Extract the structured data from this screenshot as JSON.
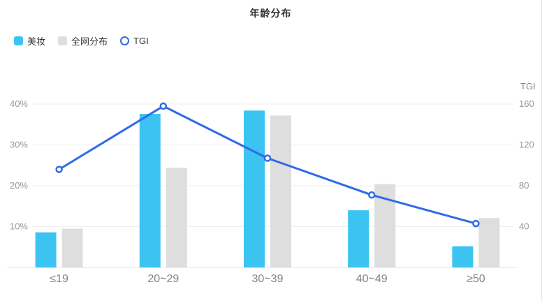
{
  "chart_data": {
    "type": "combo-bar-line",
    "title": "年龄分布",
    "categories": [
      "≤19",
      "20~29",
      "30~39",
      "40~49",
      "≥50"
    ],
    "series": [
      {
        "name": "美妆",
        "type": "bar",
        "axis": "left",
        "unit": "%",
        "color": "#3bc4f2",
        "values": [
          8.6,
          37.6,
          38.4,
          14,
          5.2
        ]
      },
      {
        "name": "全网分布",
        "type": "bar",
        "axis": "left",
        "unit": "%",
        "color": "#dedede",
        "values": [
          9.5,
          24.4,
          37.2,
          20.4,
          12.1
        ]
      },
      {
        "name": "TGI",
        "type": "line",
        "axis": "right",
        "color": "#2e6be6",
        "marker": "hollow-circle",
        "values": [
          96,
          158,
          107,
          71,
          43
        ]
      }
    ],
    "left_axis": {
      "min": 0,
      "max": 40,
      "ticks": [
        "10%",
        "20%",
        "30%",
        "40%"
      ],
      "unit": "%"
    },
    "right_axis": {
      "title": "TGI",
      "min": 0,
      "max": 160,
      "ticks": [
        "40",
        "80",
        "120",
        "160"
      ]
    },
    "grid": true,
    "legend_position": "top-left",
    "background_color": "#ffffff",
    "axis_label_color": "#999999",
    "x_label_color": "#828282"
  }
}
